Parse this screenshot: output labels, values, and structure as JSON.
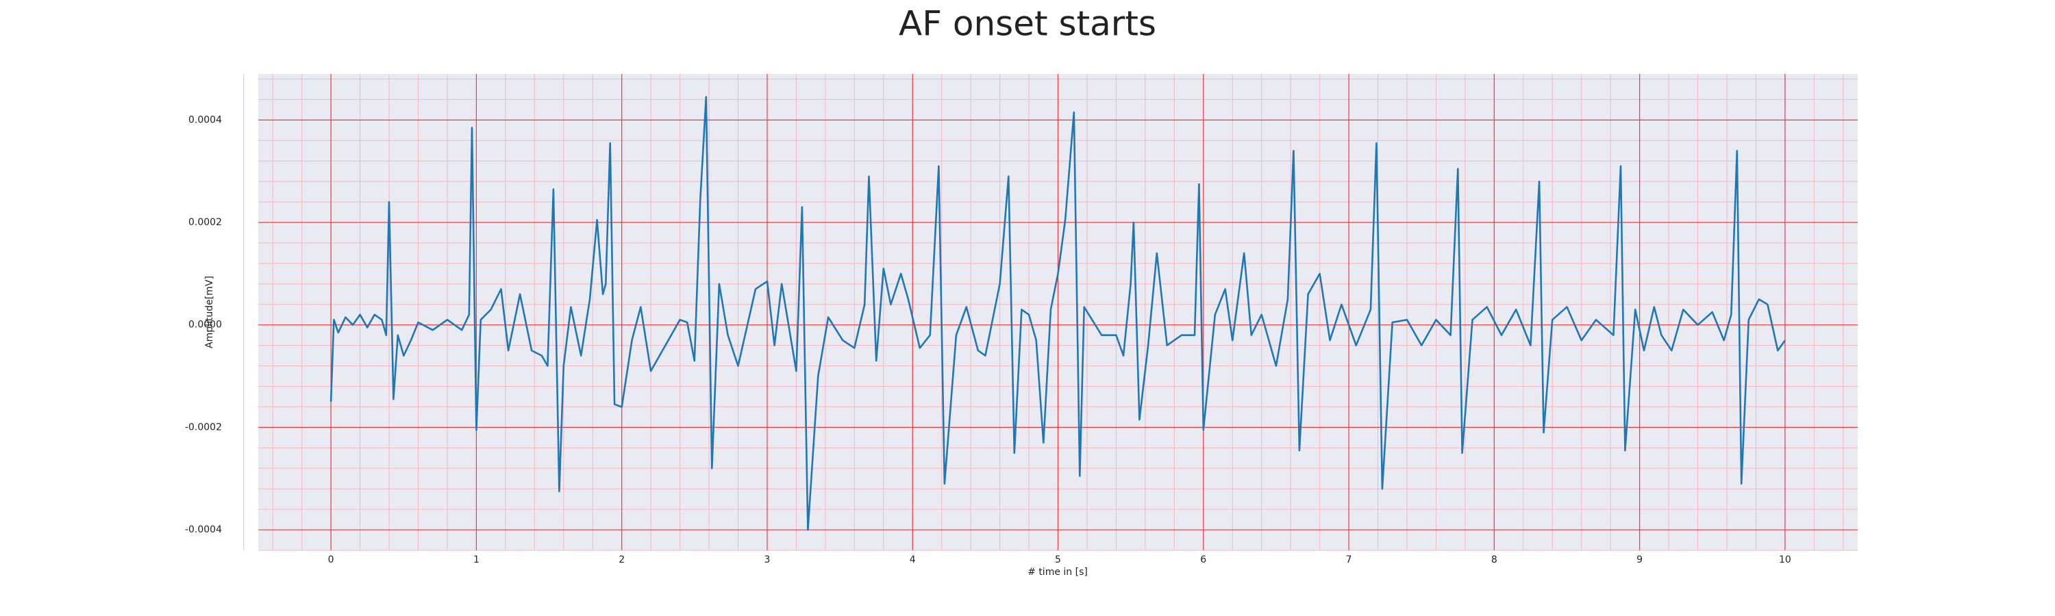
{
  "chart_data": {
    "type": "line",
    "title": "AF onset starts",
    "xlabel": "# time in [s]",
    "ylabel": "Amplitude[mV]",
    "xlim": [
      -0.5,
      10.5
    ],
    "ylim": [
      -0.00044,
      0.00049
    ],
    "xticks": [
      0,
      1,
      2,
      3,
      4,
      5,
      6,
      7,
      8,
      9,
      10
    ],
    "yticks": [
      -0.0004,
      -0.0002,
      {
        "value": 0,
        "label": "0.0000"
      },
      0.0002,
      0.0004
    ],
    "grid": true,
    "minor_grid": true,
    "minor_divisions": 5,
    "grid_color": "#f03c3c",
    "minor_grid_color": "#f5b8c0",
    "background": "#eaeaf2",
    "series": [
      {
        "color": "#1f77b4",
        "x": [
          0,
          0.02,
          0.05,
          0.1,
          0.15,
          0.2,
          0.25,
          0.3,
          0.35,
          0.38,
          0.4,
          0.43,
          0.46,
          0.5,
          0.55,
          0.6,
          0.7,
          0.8,
          0.9,
          0.95,
          0.97,
          1.0,
          1.03,
          1.1,
          1.17,
          1.22,
          1.3,
          1.38,
          1.45,
          1.49,
          1.53,
          1.57,
          1.6,
          1.65,
          1.72,
          1.78,
          1.83,
          1.87,
          1.89,
          1.92,
          1.95,
          2.0,
          2.07,
          2.13,
          2.2,
          2.3,
          2.4,
          2.45,
          2.5,
          2.54,
          2.58,
          2.62,
          2.67,
          2.73,
          2.8,
          2.92,
          3.0,
          3.05,
          3.1,
          3.2,
          3.24,
          3.28,
          3.35,
          3.42,
          3.52,
          3.6,
          3.67,
          3.7,
          3.75,
          3.8,
          3.85,
          3.92,
          3.97,
          4.05,
          4.12,
          4.18,
          4.22,
          4.3,
          4.37,
          4.45,
          4.5,
          4.6,
          4.66,
          4.7,
          4.75,
          4.8,
          4.85,
          4.9,
          4.95,
          5.0,
          5.05,
          5.11,
          5.15,
          5.18,
          5.3,
          5.4,
          5.45,
          5.5,
          5.52,
          5.56,
          5.62,
          5.68,
          5.75,
          5.85,
          5.94,
          5.97,
          6.0,
          6.08,
          6.15,
          6.2,
          6.28,
          6.33,
          6.4,
          6.5,
          6.58,
          6.62,
          6.66,
          6.72,
          6.8,
          6.87,
          6.95,
          7.05,
          7.15,
          7.19,
          7.23,
          7.3,
          7.4,
          7.5,
          7.6,
          7.7,
          7.75,
          7.78,
          7.85,
          7.95,
          8.05,
          8.15,
          8.25,
          8.31,
          8.34,
          8.4,
          8.5,
          8.6,
          8.7,
          8.82,
          8.87,
          8.9,
          8.97,
          9.03,
          9.1,
          9.15,
          9.22,
          9.3,
          9.4,
          9.5,
          9.58,
          9.63,
          9.67,
          9.7,
          9.75,
          9.82,
          9.88,
          9.95,
          10.0
        ],
        "values": [
          -0.00015,
          1e-05,
          -1.5e-05,
          1.5e-05,
          0,
          2e-05,
          -5e-06,
          2e-05,
          1e-05,
          -2e-05,
          0.00024,
          -0.000145,
          -2e-05,
          -6e-05,
          -3e-05,
          5e-06,
          -1e-05,
          1e-05,
          -1e-05,
          2e-05,
          0.000385,
          -0.000205,
          1e-05,
          3e-05,
          7e-05,
          -5e-05,
          6e-05,
          -5e-05,
          -6e-05,
          -8e-05,
          0.000265,
          -0.000325,
          -8e-05,
          3.5e-05,
          -6e-05,
          5e-05,
          0.000205,
          6e-05,
          8e-05,
          0.000355,
          -0.000155,
          -0.00016,
          -3e-05,
          3.5e-05,
          -9e-05,
          -4e-05,
          1e-05,
          5e-06,
          -7e-05,
          0.000245,
          0.000445,
          -0.00028,
          8e-05,
          -2e-05,
          -8e-05,
          7e-05,
          8.5e-05,
          -4e-05,
          8e-05,
          -9e-05,
          0.00023,
          -0.0004,
          -0.0001,
          1.5e-05,
          -3e-05,
          -4.5e-05,
          4e-05,
          0.00029,
          -7e-05,
          0.00011,
          4e-05,
          0.0001,
          5e-05,
          -4.5e-05,
          -2e-05,
          0.00031,
          -0.00031,
          -2e-05,
          3.5e-05,
          -5e-05,
          -6e-05,
          8e-05,
          0.00029,
          -0.00025,
          3e-05,
          2e-05,
          -3e-05,
          -0.00023,
          3e-05,
          0.0001,
          0.000205,
          0.000415,
          -0.000295,
          3.5e-05,
          -2e-05,
          -2e-05,
          -6e-05,
          8e-05,
          0.0002,
          -0.000185,
          -4e-05,
          0.00014,
          -4e-05,
          -2e-05,
          -2e-05,
          0.000275,
          -0.000205,
          2e-05,
          7e-05,
          -3e-05,
          0.00014,
          -2e-05,
          2e-05,
          -8e-05,
          5e-05,
          0.00034,
          -0.000245,
          6e-05,
          0.0001,
          -3e-05,
          4e-05,
          -4e-05,
          3e-05,
          0.000355,
          -0.00032,
          5e-06,
          1e-05,
          -4e-05,
          1e-05,
          -2e-05,
          0.000305,
          -0.00025,
          1e-05,
          3.5e-05,
          -2e-05,
          3e-05,
          -4e-05,
          0.00028,
          -0.00021,
          1e-05,
          3.5e-05,
          -3e-05,
          1e-05,
          -2e-05,
          0.00031,
          -0.000245,
          3e-05,
          -5e-05,
          3.5e-05,
          -2e-05,
          -5e-05,
          3e-05,
          0,
          2.5e-05,
          -3e-05,
          2e-05,
          0.00034,
          -0.00031,
          1e-05,
          5e-05,
          4e-05,
          -5e-05,
          -3e-05
        ]
      }
    ]
  }
}
